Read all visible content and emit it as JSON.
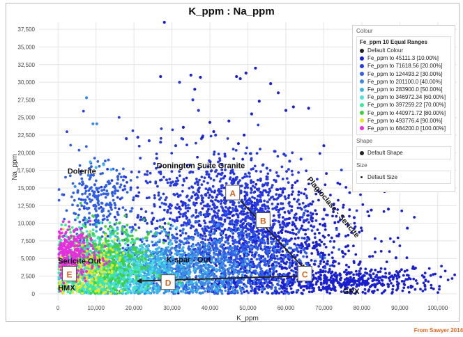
{
  "chart_data": {
    "type": "scatter",
    "title": "K_ppm : Na_ppm",
    "xlabel": "K_ppm",
    "ylabel": "Na_ppm",
    "xlim": [
      -5000,
      105000
    ],
    "ylim": [
      -1000,
      38500
    ],
    "x_ticks": [
      "0",
      "10,000",
      "20,000",
      "30,000",
      "40,000",
      "50,000",
      "60,000",
      "70,000",
      "80,000",
      "90,000",
      "100,000"
    ],
    "y_ticks": [
      "0",
      "2,500",
      "5,000",
      "7,500",
      "10,000",
      "12,500",
      "15,000",
      "17,500",
      "20,000",
      "22,500",
      "25,000",
      "27,500",
      "30,000",
      "32,500",
      "35,000",
      "37,500"
    ],
    "grid": true,
    "legend_position": "top-right",
    "legend": {
      "header": "Colour",
      "title": "Fe_ppm 10 Equal Ranges",
      "items": [
        {
          "label": "Default Colour",
          "color": "#222222"
        },
        {
          "label": "Fe_ppm  to 45111.3  [10.00%]",
          "color": "#1a1fcf"
        },
        {
          "label": "Fe_ppm  to 71618.56  [20.00%]",
          "color": "#2638e0"
        },
        {
          "label": "Fe_ppm  to 124493.2  [30.00%]",
          "color": "#2f5fe6"
        },
        {
          "label": "Fe_ppm  to 201100.0  [40.00%]",
          "color": "#3a8be3"
        },
        {
          "label": "Fe_ppm  to 283900.0  [50.00%]",
          "color": "#3cb6ea"
        },
        {
          "label": "Fe_ppm  to 346972.34  [60.00%]",
          "color": "#4ddfe0"
        },
        {
          "label": "Fe_ppm  to 397259.22  [70.00%]",
          "color": "#3de89c"
        },
        {
          "label": "Fe_ppm  to 440971.72  [80.00%]",
          "color": "#41d13f"
        },
        {
          "label": "Fe_ppm  to 493776.4  [90.00%]",
          "color": "#e6e62a"
        },
        {
          "label": "Fe_ppm  to 684200.0  [100.00%]",
          "color": "#e52ee0"
        }
      ],
      "shape_header": "Shape",
      "shape_item": "Default Shape",
      "size_header": "Size",
      "size_item": "Default Size"
    },
    "region_labels": [
      {
        "text": "Dolerite",
        "x": 2500,
        "y": 17000
      },
      {
        "text": "Donington Suite Granite",
        "x": 26000,
        "y": 17800
      },
      {
        "text": "Sericite Out",
        "x": 0,
        "y": 4300
      },
      {
        "text": "K-spar - Out",
        "x": 28500,
        "y": 4500
      },
      {
        "text": "HMX",
        "x": 0,
        "y": 500
      },
      {
        "text": "GRX",
        "x": 75000,
        "y": 0
      },
      {
        "text": "Plagioclase - Sericite",
        "x": 65500,
        "y": 16200,
        "rotation": 50
      }
    ],
    "markers": [
      {
        "label": "A",
        "x": 46000,
        "y": 14300
      },
      {
        "label": "B",
        "x": 54000,
        "y": 10400
      },
      {
        "label": "C",
        "x": 65000,
        "y": 2800
      },
      {
        "label": "D",
        "x": 29000,
        "y": 1600
      },
      {
        "label": "E",
        "x": 3000,
        "y": 2800
      }
    ],
    "arrows": [
      {
        "from": [
          48000,
          13200
        ],
        "to": [
          65000,
          3500
        ]
      },
      {
        "from": [
          63000,
          2500
        ],
        "to": [
          21000,
          1800
        ]
      }
    ],
    "series": [
      {
        "color": "#1a1fcf",
        "points": [
          [
            28000,
            38500
          ],
          [
            52000,
            32000
          ],
          [
            49500,
            31300
          ],
          [
            35000,
            31000
          ],
          [
            37500,
            30700
          ],
          [
            27000,
            30800
          ],
          [
            36000,
            29000
          ],
          [
            47000,
            30800
          ],
          [
            48000,
            30500
          ],
          [
            56000,
            29800
          ],
          [
            58000,
            28500
          ],
          [
            53000,
            27300
          ],
          [
            60000,
            26000
          ],
          [
            62000,
            26500
          ],
          [
            66000,
            26300
          ],
          [
            45000,
            24500
          ],
          [
            51000,
            25500
          ],
          [
            49000,
            22500
          ],
          [
            33000,
            23600
          ],
          [
            38000,
            22200
          ],
          [
            40000,
            24300
          ],
          [
            41000,
            23000
          ],
          [
            47500,
            21300
          ],
          [
            70000,
            21000
          ],
          [
            84000,
            18300
          ],
          [
            87000,
            12000
          ],
          [
            92000,
            9300
          ],
          [
            89000,
            5100
          ],
          [
            78000,
            10800
          ],
          [
            86000,
            14500
          ]
        ]
      },
      {
        "color": "#2638e0",
        "points": [
          [
            32000,
            30000
          ],
          [
            35500,
            27500
          ],
          [
            37000,
            26000
          ],
          [
            41500,
            22500
          ],
          [
            21000,
            22200
          ],
          [
            18000,
            22000
          ],
          [
            24000,
            21700
          ],
          [
            27000,
            21500
          ],
          [
            31000,
            21000
          ],
          [
            57000,
            20200
          ],
          [
            59500,
            19800
          ],
          [
            61000,
            18800
          ],
          [
            64000,
            19100
          ],
          [
            54000,
            18300
          ],
          [
            55000,
            17800
          ],
          [
            44000,
            19500
          ],
          [
            26000,
            19200
          ]
        ]
      },
      {
        "color": "#3a8be3",
        "points": [
          [
            7500,
            27800
          ],
          [
            9200,
            24100
          ],
          [
            10200,
            24100
          ],
          [
            8000,
            16800
          ],
          [
            4500,
            15200
          ]
        ]
      },
      {
        "color": "#3cb6ea",
        "points": [
          [
            12000,
            18300
          ],
          [
            14000,
            17600
          ],
          [
            8500,
            18700
          ],
          [
            10000,
            17900
          ]
        ]
      }
    ],
    "clusters": [
      {
        "color": "#1a1fcf",
        "cx": 56000,
        "cy": 6500,
        "sx": 13000,
        "sy": 4500,
        "n": 900
      },
      {
        "color": "#1a1fcf",
        "cx": 75000,
        "cy": 1800,
        "sx": 14000,
        "sy": 1000,
        "n": 500
      },
      {
        "color": "#2638e0",
        "cx": 50000,
        "cy": 11500,
        "sx": 8000,
        "sy": 3500,
        "n": 550
      },
      {
        "color": "#2638e0",
        "cx": 35000,
        "cy": 12500,
        "sx": 12000,
        "sy": 4200,
        "n": 450
      },
      {
        "color": "#2f5fe6",
        "cx": 42000,
        "cy": 4500,
        "sx": 12000,
        "sy": 3000,
        "n": 750
      },
      {
        "color": "#2f5fe6",
        "cx": 10000,
        "cy": 12500,
        "sx": 4500,
        "sy": 3000,
        "n": 250
      },
      {
        "color": "#3a8be3",
        "cx": 32000,
        "cy": 3300,
        "sx": 10000,
        "sy": 2200,
        "n": 650
      },
      {
        "color": "#3cb6ea",
        "cx": 20000,
        "cy": 3200,
        "sx": 9000,
        "sy": 2300,
        "n": 650
      },
      {
        "color": "#4ddfe0",
        "cx": 13000,
        "cy": 2800,
        "sx": 7000,
        "sy": 2000,
        "n": 500
      },
      {
        "color": "#3de89c",
        "cx": 9000,
        "cy": 3800,
        "sx": 6000,
        "sy": 2600,
        "n": 450
      },
      {
        "color": "#41d13f",
        "cx": 14000,
        "cy": 5000,
        "sx": 6000,
        "sy": 2500,
        "n": 300
      },
      {
        "color": "#e6e62a",
        "cx": 7000,
        "cy": 3500,
        "sx": 5000,
        "sy": 2000,
        "n": 220
      },
      {
        "color": "#e52ee0",
        "cx": 4000,
        "cy": 5800,
        "sx": 3200,
        "sy": 1800,
        "n": 260
      }
    ]
  },
  "credit": "From Sawyer 2014"
}
